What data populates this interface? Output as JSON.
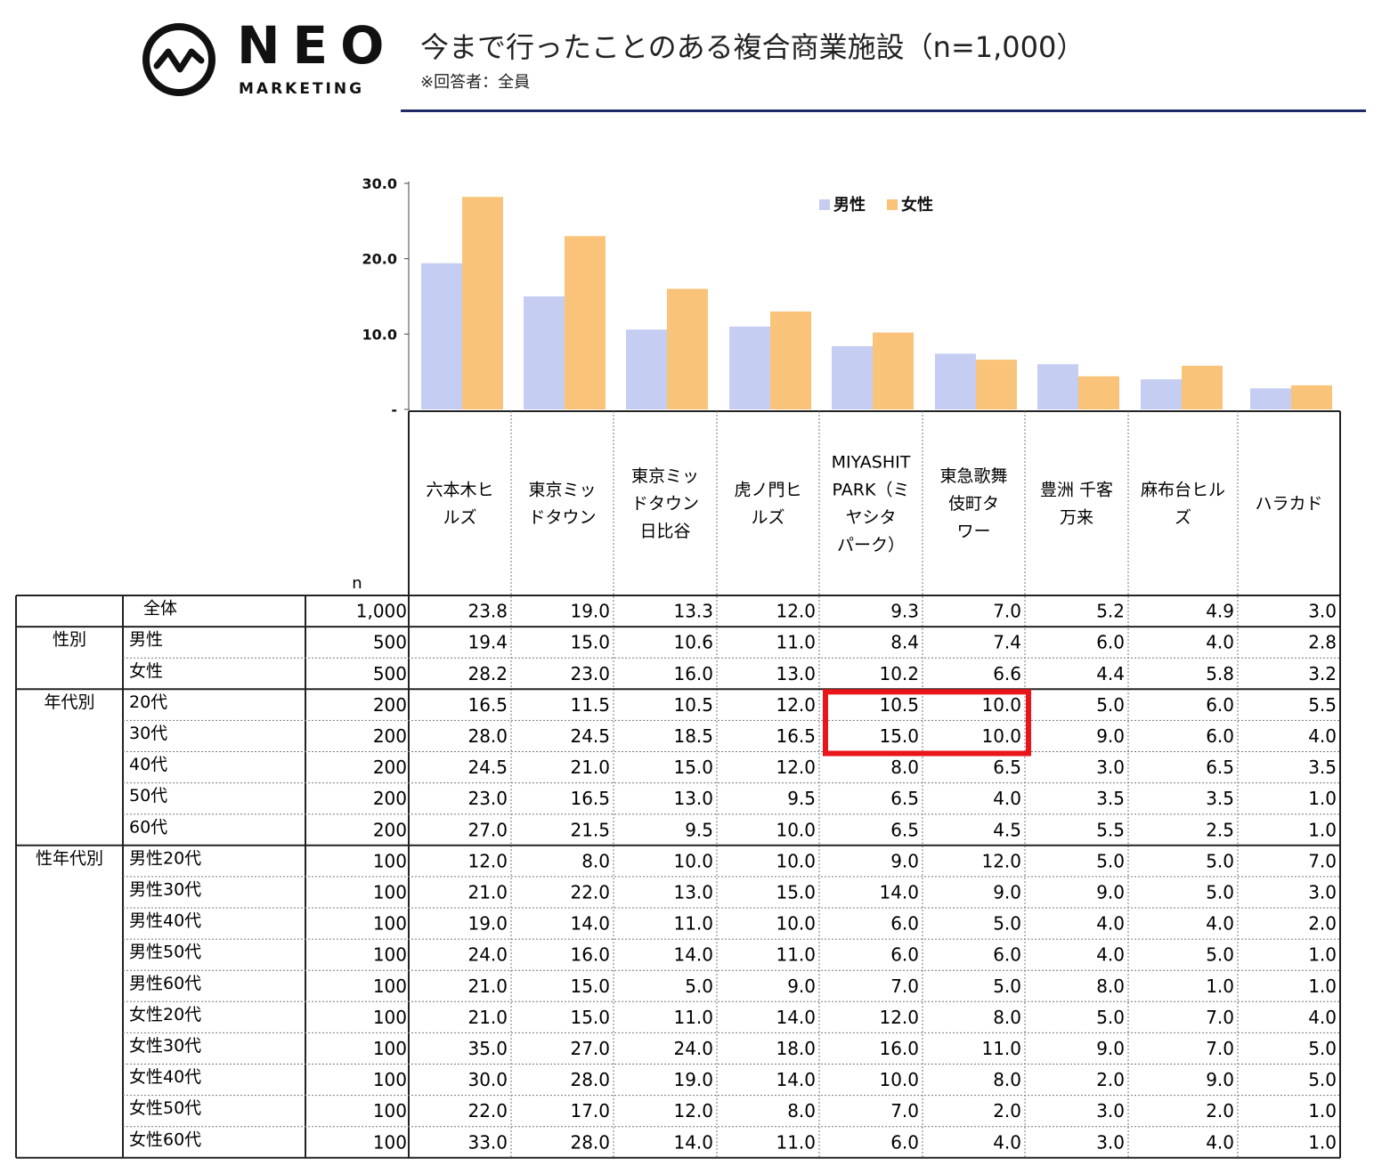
{
  "header": {
    "logo_main": "NEO",
    "logo_sub": "MARKETING",
    "title": "今まで行ったことのある複合商業施設（n=1,000）",
    "subtitle": "※回答者：全員"
  },
  "colors": {
    "male": "#c5cdf2",
    "female": "#f9c479",
    "title_rule": "#1f2a66",
    "highlight": "#e8161a"
  },
  "chart_data": {
    "type": "bar",
    "categories": [
      "六本木ヒルズ",
      "東京ミッドタウン",
      "東京ミッドタウン日比谷",
      "虎ノ門ヒルズ",
      "MIYASHITA PARK（ミヤシタパーク）",
      "東急歌舞伎町タワー",
      "豊洲 千客万来",
      "麻布台ヒルズ",
      "ハラカド"
    ],
    "series": [
      {
        "name": "男性",
        "values": [
          19.4,
          15.0,
          10.6,
          11.0,
          8.4,
          7.4,
          6.0,
          4.0,
          2.8
        ]
      },
      {
        "name": "女性",
        "values": [
          28.2,
          23.0,
          16.0,
          13.0,
          10.2,
          6.6,
          4.4,
          5.8,
          3.2
        ]
      }
    ],
    "ylim": [
      0,
      30
    ],
    "yticks": [
      "-",
      "10.0",
      "20.0",
      "30.0"
    ],
    "legend_position": "top-right",
    "grid": false
  },
  "table": {
    "n_label": "n",
    "category_labels": [
      [
        "六本木ヒ",
        "ルズ"
      ],
      [
        "東京ミッ",
        "ドタウン"
      ],
      [
        "東京ミッ",
        "ドタウン",
        "日比谷"
      ],
      [
        "虎ノ門ヒ",
        "ルズ"
      ],
      [
        "MIYASHIT",
        "PARK（ミ",
        "ヤシタ",
        "パーク）"
      ],
      [
        "東急歌舞",
        "伎町タ",
        "ワー"
      ],
      [
        "豊洲 千客",
        "万来"
      ],
      [
        "麻布台ヒル",
        "ズ"
      ],
      [
        "ハラカド"
      ]
    ],
    "rows": [
      {
        "group": "全体",
        "label": "",
        "n": "1,000",
        "values": [
          "23.8",
          "19.0",
          "13.3",
          "12.0",
          "9.3",
          "7.0",
          "5.2",
          "4.9",
          "3.0"
        ]
      },
      {
        "group": "性別",
        "label": "男性",
        "n": "500",
        "values": [
          "19.4",
          "15.0",
          "10.6",
          "11.0",
          "8.4",
          "7.4",
          "6.0",
          "4.0",
          "2.8"
        ]
      },
      {
        "group": "",
        "label": "女性",
        "n": "500",
        "values": [
          "28.2",
          "23.0",
          "16.0",
          "13.0",
          "10.2",
          "6.6",
          "4.4",
          "5.8",
          "3.2"
        ]
      },
      {
        "group": "年代別",
        "label": "20代",
        "n": "200",
        "values": [
          "16.5",
          "11.5",
          "10.5",
          "12.0",
          "10.5",
          "10.0",
          "5.0",
          "6.0",
          "5.5"
        ]
      },
      {
        "group": "",
        "label": "30代",
        "n": "200",
        "values": [
          "28.0",
          "24.5",
          "18.5",
          "16.5",
          "15.0",
          "10.0",
          "9.0",
          "6.0",
          "4.0"
        ]
      },
      {
        "group": "",
        "label": "40代",
        "n": "200",
        "values": [
          "24.5",
          "21.0",
          "15.0",
          "12.0",
          "8.0",
          "6.5",
          "3.0",
          "6.5",
          "3.5"
        ]
      },
      {
        "group": "",
        "label": "50代",
        "n": "200",
        "values": [
          "23.0",
          "16.5",
          "13.0",
          "9.5",
          "6.5",
          "4.0",
          "3.5",
          "3.5",
          "1.0"
        ]
      },
      {
        "group": "",
        "label": "60代",
        "n": "200",
        "values": [
          "27.0",
          "21.5",
          "9.5",
          "10.0",
          "6.5",
          "4.5",
          "5.5",
          "2.5",
          "1.0"
        ]
      },
      {
        "group": "性年代別",
        "label": "男性20代",
        "n": "100",
        "values": [
          "12.0",
          "8.0",
          "10.0",
          "10.0",
          "9.0",
          "12.0",
          "5.0",
          "5.0",
          "7.0"
        ]
      },
      {
        "group": "",
        "label": "男性30代",
        "n": "100",
        "values": [
          "21.0",
          "22.0",
          "13.0",
          "15.0",
          "14.0",
          "9.0",
          "9.0",
          "5.0",
          "3.0"
        ]
      },
      {
        "group": "",
        "label": "男性40代",
        "n": "100",
        "values": [
          "19.0",
          "14.0",
          "11.0",
          "10.0",
          "6.0",
          "5.0",
          "4.0",
          "4.0",
          "2.0"
        ]
      },
      {
        "group": "",
        "label": "男性50代",
        "n": "100",
        "values": [
          "24.0",
          "16.0",
          "14.0",
          "11.0",
          "6.0",
          "6.0",
          "4.0",
          "5.0",
          "1.0"
        ]
      },
      {
        "group": "",
        "label": "男性60代",
        "n": "100",
        "values": [
          "21.0",
          "15.0",
          "5.0",
          "9.0",
          "7.0",
          "5.0",
          "8.0",
          "1.0",
          "1.0"
        ]
      },
      {
        "group": "",
        "label": "女性20代",
        "n": "100",
        "values": [
          "21.0",
          "15.0",
          "11.0",
          "14.0",
          "12.0",
          "8.0",
          "5.0",
          "7.0",
          "4.0"
        ]
      },
      {
        "group": "",
        "label": "女性30代",
        "n": "100",
        "values": [
          "35.0",
          "27.0",
          "24.0",
          "18.0",
          "16.0",
          "11.0",
          "9.0",
          "7.0",
          "5.0"
        ]
      },
      {
        "group": "",
        "label": "女性40代",
        "n": "100",
        "values": [
          "30.0",
          "28.0",
          "19.0",
          "14.0",
          "10.0",
          "8.0",
          "2.0",
          "9.0",
          "5.0"
        ]
      },
      {
        "group": "",
        "label": "女性50代",
        "n": "100",
        "values": [
          "22.0",
          "17.0",
          "12.0",
          "8.0",
          "7.0",
          "2.0",
          "3.0",
          "2.0",
          "1.0"
        ]
      },
      {
        "group": "",
        "label": "女性60代",
        "n": "100",
        "values": [
          "33.0",
          "28.0",
          "14.0",
          "11.0",
          "6.0",
          "4.0",
          "3.0",
          "4.0",
          "1.0"
        ]
      }
    ]
  },
  "highlight": {
    "rows": [
      3,
      4
    ],
    "cols": [
      4,
      5
    ]
  }
}
